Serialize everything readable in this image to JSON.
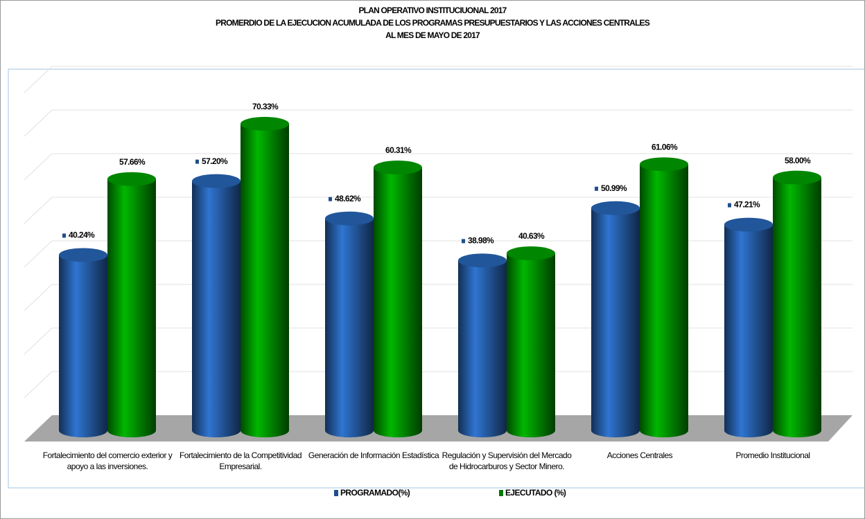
{
  "chart_data": {
    "type": "bar3d",
    "title": [
      "PLAN OPERATIVO INSTITUCIUONAL 2017",
      "PROMERDIO DE LA EJECUCION ACUMULADA DE LOS PROGRAMAS PRESUPUESTARIOS Y LAS ACCIONES CENTRALES",
      "AL MES DE MAYO DE 2017"
    ],
    "categories": [
      "Fortalecimiento del comercio exterior y apoyo a las inversiones.",
      "Fortalecimiento de la Competitividad Empresarial.",
      "Generación de Información Estadística",
      "Regulación y Supervisión del Mercado de Hidrocarburos y Sector Minero.",
      "Acciones Centrales",
      "Promedio Institucional"
    ],
    "series": [
      {
        "name": "PROGRAMADO(%)",
        "color": "#1f4e8c",
        "values": [
          40.24,
          57.2,
          48.62,
          38.98,
          50.99,
          47.21
        ],
        "value_labels": [
          "40.24%",
          "57.20%",
          "48.62%",
          "38.98%",
          "50.99%",
          "47.21%"
        ]
      },
      {
        "name": "EJECUTADO (%)",
        "color": "#007a00",
        "values": [
          57.66,
          70.33,
          60.31,
          40.63,
          61.06,
          58.0
        ],
        "value_labels": [
          "57.66%",
          "70.33%",
          "60.31%",
          "40.63%",
          "61.06%",
          "58.00%"
        ]
      }
    ],
    "ylim": [
      0,
      80
    ],
    "yticks": [
      0,
      10,
      20,
      30,
      40,
      50,
      60,
      70,
      80
    ],
    "grid": true,
    "legend": "bottom"
  }
}
